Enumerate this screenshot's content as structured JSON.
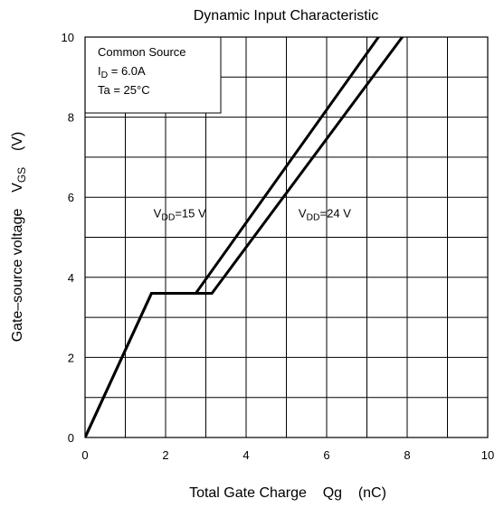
{
  "chart_data": {
    "type": "line",
    "title": "Dynamic Input Characteristic",
    "xlabel": "Total Gate Charge    Qg    (nC)",
    "ylabel": {
      "prefix": "Gate–source voltage    V",
      "sub": "GS",
      "suffix": "    (V)"
    },
    "xlim": [
      0,
      10
    ],
    "ylim": [
      0,
      10
    ],
    "x_ticks": [
      0,
      2,
      4,
      6,
      8,
      10
    ],
    "y_ticks": [
      0,
      2,
      4,
      6,
      8,
      10
    ],
    "grid": true,
    "grid_step": 1,
    "conditions": [
      {
        "prefix": "Common Source",
        "sub": "",
        "suffix": ""
      },
      {
        "prefix": "I",
        "sub": "D",
        "suffix": " = 6.0A"
      },
      {
        "prefix": "Ta = 25°C",
        "sub": "",
        "suffix": ""
      }
    ],
    "series": [
      {
        "name": {
          "prefix": "V",
          "sub": "DD",
          "suffix": "=15 V"
        },
        "label_at": [
          1.7,
          5.5
        ],
        "points": [
          [
            0,
            0
          ],
          [
            1.65,
            3.6
          ],
          [
            2.75,
            3.6
          ],
          [
            7.5,
            10.3
          ]
        ]
      },
      {
        "name": {
          "prefix": "V",
          "sub": "DD",
          "suffix": "=24 V"
        },
        "label_at": [
          5.3,
          5.5
        ],
        "points": [
          [
            0,
            0
          ],
          [
            1.65,
            3.6
          ],
          [
            3.15,
            3.6
          ],
          [
            8.1,
            10.3
          ]
        ]
      }
    ],
    "line_color": "#000000",
    "grid_color": "#000000"
  }
}
